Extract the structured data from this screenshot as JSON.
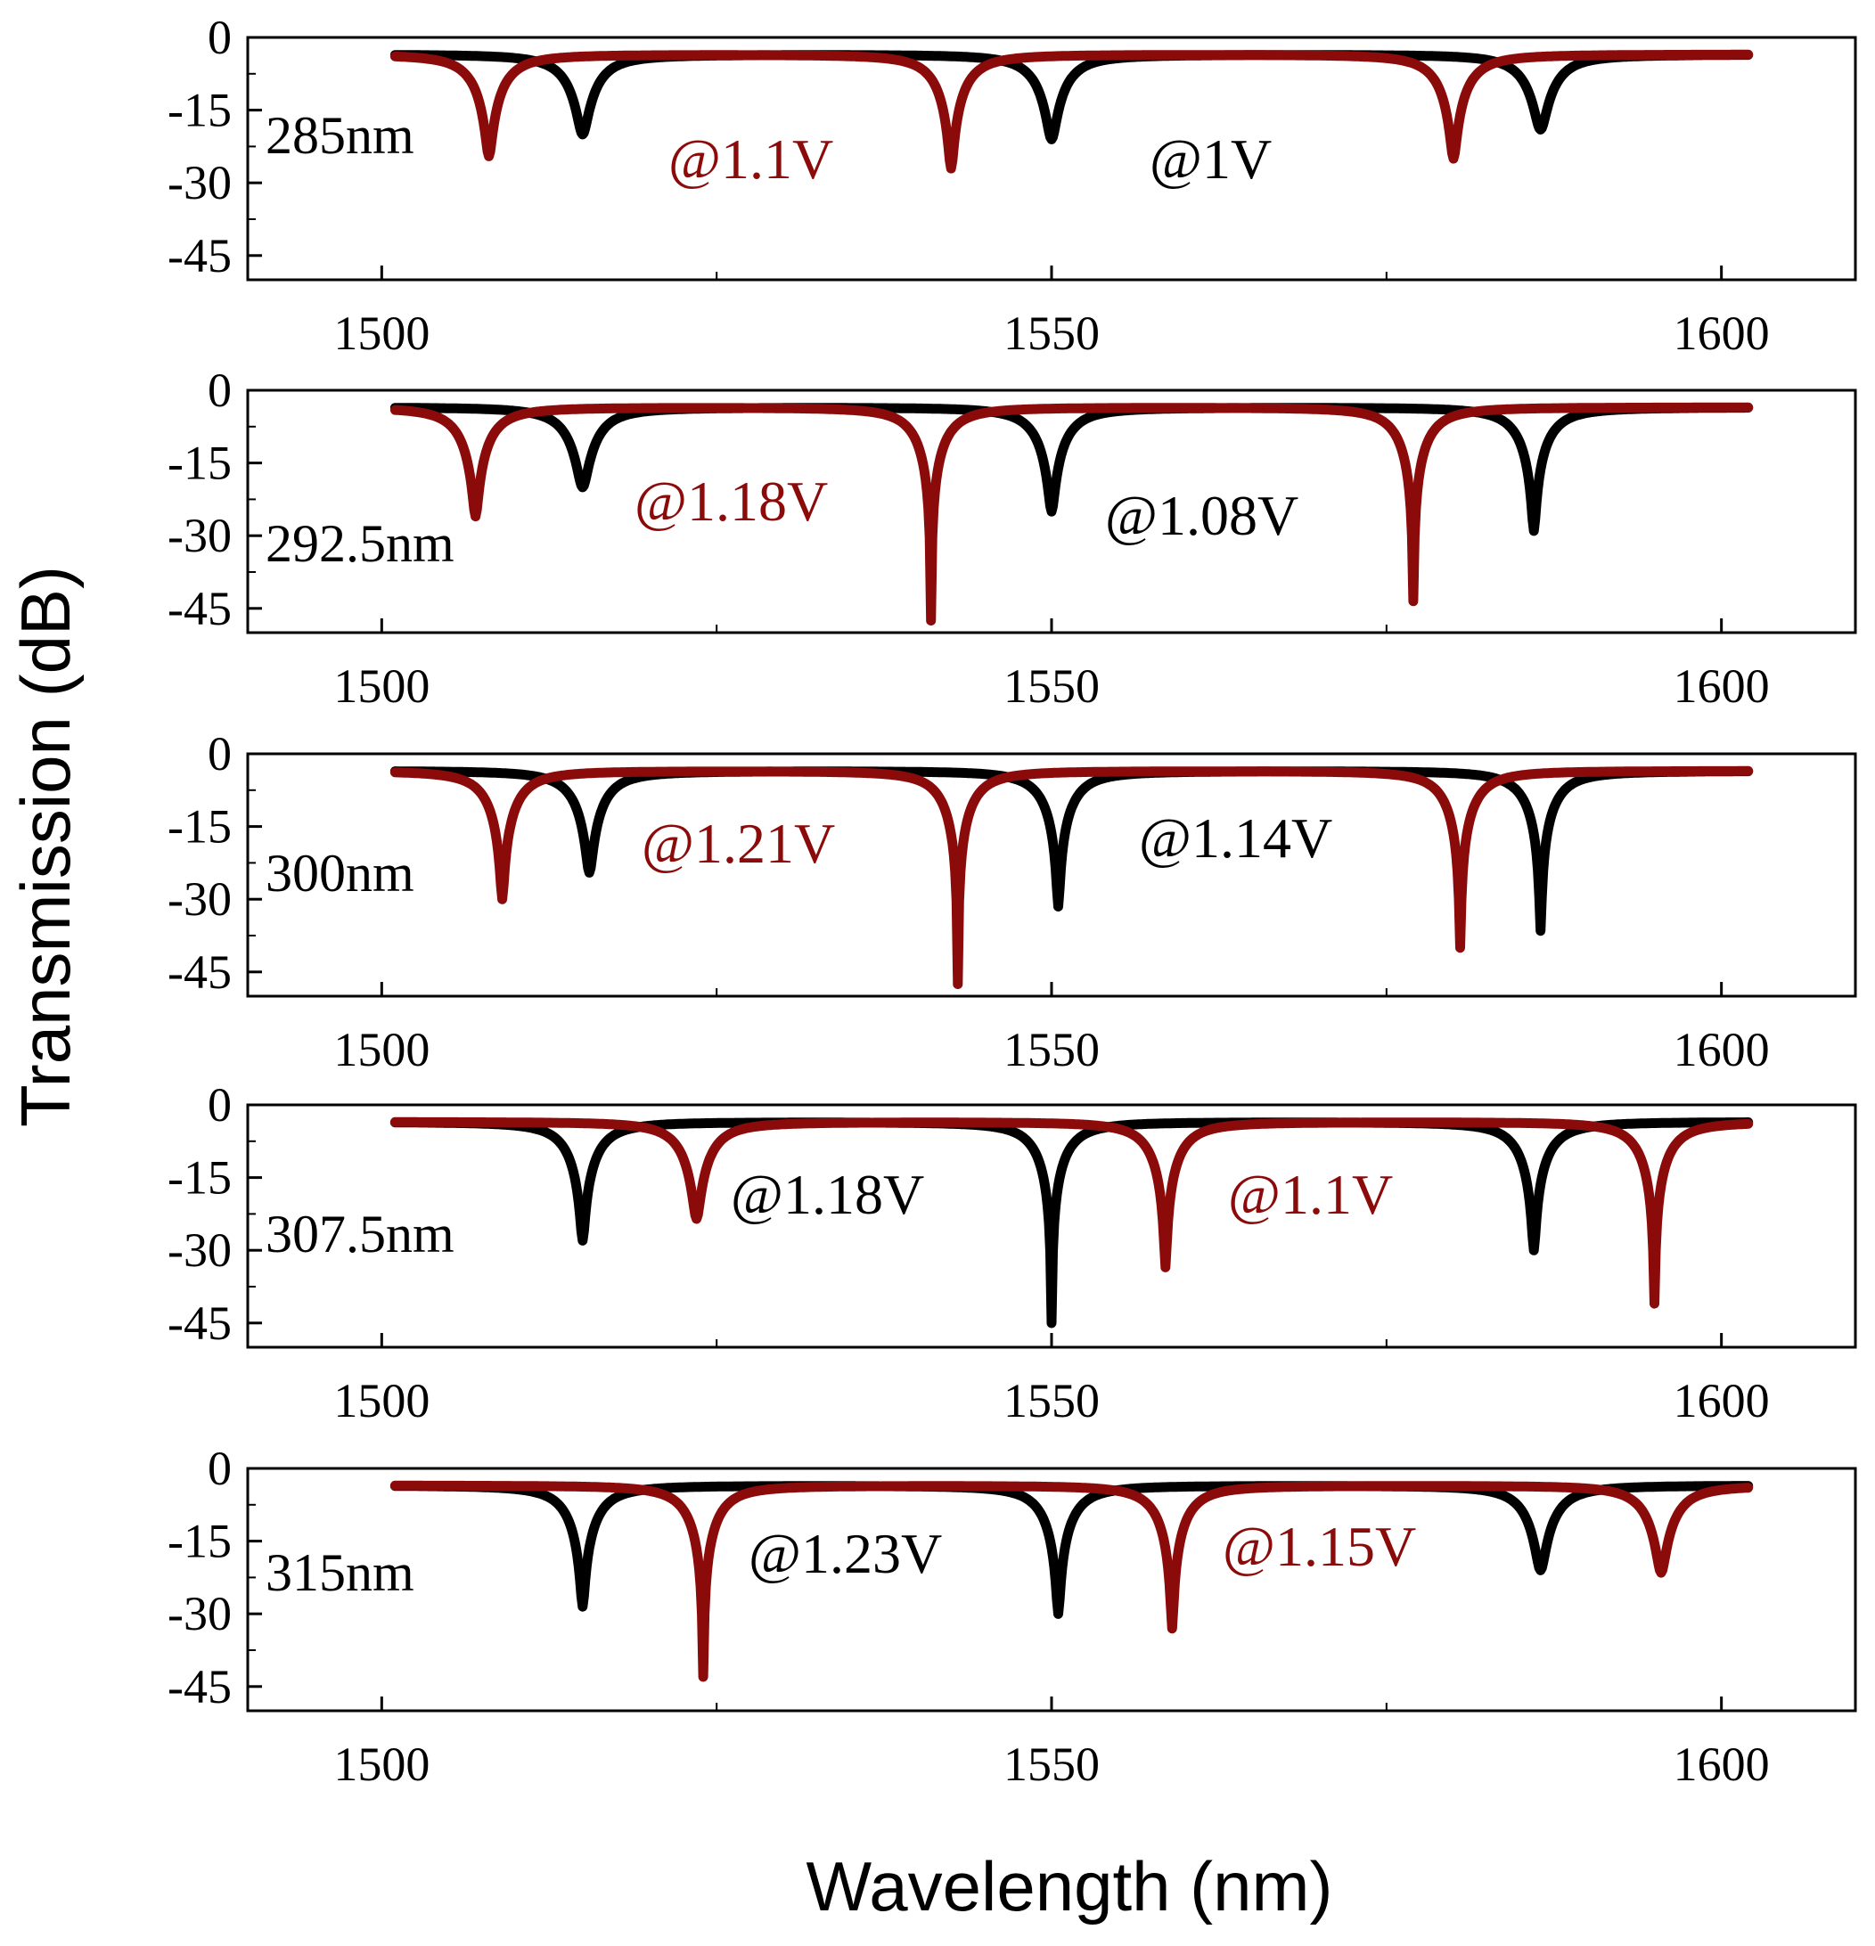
{
  "figure": {
    "xlabel": "Wavelength (nm)",
    "ylabel": "Transmission (dB)"
  },
  "colors": {
    "low_voltage": "#000000",
    "high_voltage": "#8B0A0A"
  },
  "chart_data": [
    {
      "type": "line",
      "panel_label": "285nm",
      "xlim": [
        1490,
        1610
      ],
      "ylim": [
        -50,
        0
      ],
      "xticks": [
        1500,
        1550,
        1600
      ],
      "yticks": [
        0,
        -15,
        -30,
        -45
      ],
      "series": [
        {
          "name": "@1V",
          "color": "#000000",
          "offset": -3.5,
          "dips": [
            [
              1515,
              -20
            ],
            [
              1550,
              -21
            ],
            [
              1586.5,
              -19
            ]
          ],
          "x_range": [
            1501,
            1602
          ]
        },
        {
          "name": "@1.1V",
          "color": "#8B0A0A",
          "offset": -3.5,
          "dips": [
            [
              1508,
              -24.5
            ],
            [
              1542.5,
              -27
            ],
            [
              1580,
              -25
            ]
          ],
          "x_range": [
            1501,
            1602
          ]
        }
      ]
    },
    {
      "type": "line",
      "panel_label": "292.5nm",
      "xlim": [
        1490,
        1610
      ],
      "ylim": [
        -50,
        0
      ],
      "xticks": [
        1500,
        1550,
        1600
      ],
      "yticks": [
        0,
        -15,
        -30,
        -45
      ],
      "series": [
        {
          "name": "@1.08V",
          "color": "#000000",
          "offset": -3.5,
          "dips": [
            [
              1515,
              -20
            ],
            [
              1550,
              -25
            ],
            [
              1586,
              -29
            ]
          ],
          "x_range": [
            1501,
            1602
          ]
        },
        {
          "name": "@1.18V",
          "color": "#8B0A0A",
          "offset": -3.5,
          "dips": [
            [
              1507,
              -26
            ],
            [
              1541,
              -47.5
            ],
            [
              1577,
              -43.5
            ]
          ],
          "x_range": [
            1501,
            1602
          ]
        }
      ]
    },
    {
      "type": "line",
      "panel_label": "300nm",
      "xlim": [
        1490,
        1610
      ],
      "ylim": [
        -50,
        0
      ],
      "xticks": [
        1500,
        1550,
        1600
      ],
      "yticks": [
        0,
        -15,
        -30,
        -45
      ],
      "series": [
        {
          "name": "@1.14V",
          "color": "#000000",
          "offset": -3.5,
          "dips": [
            [
              1515.5,
              -24.5
            ],
            [
              1550.5,
              -31.5
            ],
            [
              1586.5,
              -36.5
            ]
          ],
          "x_range": [
            1501,
            1602
          ]
        },
        {
          "name": "@1.21V",
          "color": "#8B0A0A",
          "offset": -3.5,
          "dips": [
            [
              1509,
              -30
            ],
            [
              1543,
              -47.5
            ],
            [
              1580.5,
              -40
            ]
          ],
          "x_range": [
            1501,
            1602
          ]
        }
      ]
    },
    {
      "type": "line",
      "panel_label": "307.5nm",
      "xlim": [
        1490,
        1610
      ],
      "ylim": [
        -50,
        0
      ],
      "xticks": [
        1500,
        1550,
        1600
      ],
      "yticks": [
        0,
        -15,
        -30,
        -45
      ],
      "series": [
        {
          "name": "@1.18V",
          "color": "#000000",
          "offset": -3.5,
          "dips": [
            [
              1515,
              -28
            ],
            [
              1550,
              -45
            ],
            [
              1586,
              -30
            ]
          ],
          "x_range": [
            1501,
            1602
          ]
        },
        {
          "name": "@1.1V",
          "color": "#8B0A0A",
          "offset": -3.5,
          "dips": [
            [
              1523.5,
              -23.5
            ],
            [
              1558.5,
              -33.5
            ],
            [
              1595,
              -41
            ]
          ],
          "x_range": [
            1501,
            1602
          ]
        }
      ]
    },
    {
      "type": "line",
      "panel_label": "315nm",
      "xlim": [
        1490,
        1610
      ],
      "ylim": [
        -50,
        0
      ],
      "xticks": [
        1500,
        1550,
        1600
      ],
      "yticks": [
        0,
        -15,
        -30,
        -45
      ],
      "series": [
        {
          "name": "@1.23V",
          "color": "#000000",
          "offset": -3.5,
          "dips": [
            [
              1515,
              -28.5
            ],
            [
              1550.5,
              -30
            ],
            [
              1586.5,
              -21
            ]
          ],
          "x_range": [
            1501,
            1602
          ]
        },
        {
          "name": "@1.15V",
          "color": "#8B0A0A",
          "offset": -3.5,
          "dips": [
            [
              1524,
              -43
            ],
            [
              1559,
              -33
            ],
            [
              1595.5,
              -21.5
            ]
          ],
          "x_range": [
            1501,
            1602
          ]
        }
      ]
    }
  ]
}
